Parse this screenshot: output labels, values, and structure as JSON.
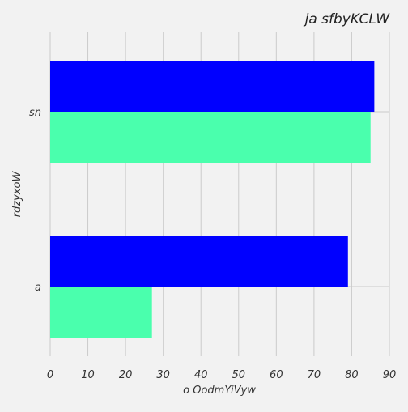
{
  "chart_data": {
    "type": "bar",
    "orientation": "horizontal",
    "title": "ja sfbyKCLW",
    "xlabel": "o OodmYiVyw",
    "ylabel": "rdzyxoW",
    "categories": [
      "sn",
      "a"
    ],
    "series": [
      {
        "values": [
          86,
          79
        ],
        "color": "#0000ff"
      },
      {
        "values": [
          85,
          27
        ],
        "color": "#4affad"
      }
    ],
    "xlim": [
      0,
      90
    ],
    "xticks": [
      0,
      10,
      20,
      30,
      40,
      50,
      60,
      70,
      80,
      90
    ],
    "grid": true,
    "background": "#f2f2f2"
  }
}
